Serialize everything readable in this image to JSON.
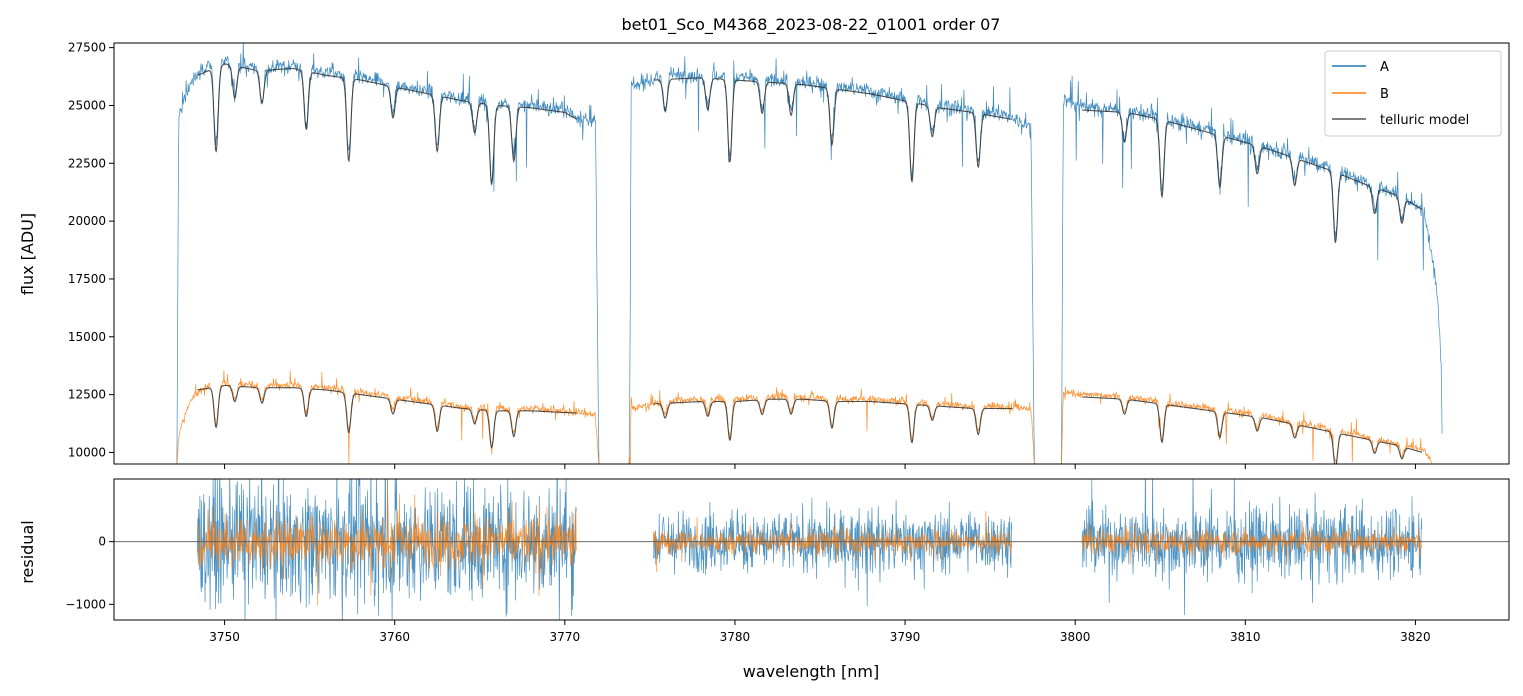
{
  "chart_data": {
    "title": "bet01_Sco_M4368_2023-08-22_01001  order 07",
    "xlabel": "wavelength [nm]",
    "xlim": [
      3743.5,
      3825.5
    ],
    "xticks": [
      3750,
      3760,
      3770,
      3780,
      3790,
      3800,
      3810,
      3820
    ],
    "top_panel": {
      "type": "line",
      "ylabel": "flux [ADU]",
      "ylim": [
        9500,
        27700
      ],
      "yticks": [
        10000,
        12500,
        15000,
        17500,
        20000,
        22500,
        25000,
        27500
      ],
      "legend": {
        "position": "top-right",
        "entries": [
          {
            "label": "A",
            "color": "#1f77b4"
          },
          {
            "label": "B",
            "color": "#ff7f0e"
          },
          {
            "label": "telluric model",
            "color": "#555555"
          }
        ]
      },
      "segments_x": [
        [
          3747.2,
          3772.0
        ],
        [
          3773.8,
          3797.6
        ],
        [
          3799.2,
          3821.6
        ]
      ],
      "series": [
        {
          "name": "A",
          "color": "#1f77b4",
          "points": [
            {
              "x": 3747.2,
              "y": 9500
            },
            {
              "x": 3747.3,
              "y": 24500
            },
            {
              "x": 3748.0,
              "y": 26000
            },
            {
              "x": 3749.0,
              "y": 26800
            },
            {
              "x": 3750.0,
              "y": 26900
            },
            {
              "x": 3752.0,
              "y": 26600
            },
            {
              "x": 3754.0,
              "y": 26700
            },
            {
              "x": 3756.0,
              "y": 26400
            },
            {
              "x": 3758.0,
              "y": 26200
            },
            {
              "x": 3760.0,
              "y": 25900
            },
            {
              "x": 3762.0,
              "y": 25600
            },
            {
              "x": 3764.0,
              "y": 25300
            },
            {
              "x": 3766.0,
              "y": 25100
            },
            {
              "x": 3768.0,
              "y": 25000
            },
            {
              "x": 3770.0,
              "y": 24800
            },
            {
              "x": 3771.0,
              "y": 24400
            },
            {
              "x": 3771.8,
              "y": 24300
            },
            {
              "x": 3772.0,
              "y": 9500
            },
            {
              "x": 3773.8,
              "y": 9500
            },
            {
              "x": 3773.9,
              "y": 25800
            },
            {
              "x": 3776.0,
              "y": 26300
            },
            {
              "x": 3778.0,
              "y": 26300
            },
            {
              "x": 3780.0,
              "y": 26200
            },
            {
              "x": 3782.0,
              "y": 26100
            },
            {
              "x": 3784.0,
              "y": 26000
            },
            {
              "x": 3786.0,
              "y": 25800
            },
            {
              "x": 3788.0,
              "y": 25600
            },
            {
              "x": 3790.0,
              "y": 25300
            },
            {
              "x": 3792.0,
              "y": 25000
            },
            {
              "x": 3794.0,
              "y": 24800
            },
            {
              "x": 3796.0,
              "y": 24600
            },
            {
              "x": 3797.4,
              "y": 24000
            },
            {
              "x": 3797.6,
              "y": 9500
            },
            {
              "x": 3799.2,
              "y": 9500
            },
            {
              "x": 3799.3,
              "y": 25200
            },
            {
              "x": 3801.0,
              "y": 24900
            },
            {
              "x": 3803.0,
              "y": 24800
            },
            {
              "x": 3805.0,
              "y": 24500
            },
            {
              "x": 3807.0,
              "y": 24100
            },
            {
              "x": 3809.0,
              "y": 23700
            },
            {
              "x": 3811.0,
              "y": 23300
            },
            {
              "x": 3813.0,
              "y": 22800
            },
            {
              "x": 3815.0,
              "y": 22300
            },
            {
              "x": 3817.0,
              "y": 21700
            },
            {
              "x": 3819.0,
              "y": 21200
            },
            {
              "x": 3820.5,
              "y": 20400
            },
            {
              "x": 3821.2,
              "y": 17500
            },
            {
              "x": 3821.5,
              "y": 14500
            },
            {
              "x": 3821.6,
              "y": 9500
            }
          ]
        },
        {
          "name": "B",
          "color": "#ff7f0e",
          "points": [
            {
              "x": 3747.2,
              "y": 9500
            },
            {
              "x": 3747.3,
              "y": 10700
            },
            {
              "x": 3748.0,
              "y": 12300
            },
            {
              "x": 3749.0,
              "y": 12900
            },
            {
              "x": 3750.0,
              "y": 13000
            },
            {
              "x": 3752.0,
              "y": 12900
            },
            {
              "x": 3754.0,
              "y": 12900
            },
            {
              "x": 3756.0,
              "y": 12800
            },
            {
              "x": 3758.0,
              "y": 12600
            },
            {
              "x": 3760.0,
              "y": 12400
            },
            {
              "x": 3762.0,
              "y": 12200
            },
            {
              "x": 3764.0,
              "y": 12000
            },
            {
              "x": 3766.0,
              "y": 11900
            },
            {
              "x": 3768.0,
              "y": 11900
            },
            {
              "x": 3770.0,
              "y": 11800
            },
            {
              "x": 3771.0,
              "y": 11700
            },
            {
              "x": 3771.8,
              "y": 11600
            },
            {
              "x": 3772.0,
              "y": 9500
            },
            {
              "x": 3773.8,
              "y": 9500
            },
            {
              "x": 3773.9,
              "y": 11900
            },
            {
              "x": 3776.0,
              "y": 12200
            },
            {
              "x": 3778.0,
              "y": 12300
            },
            {
              "x": 3780.0,
              "y": 12300
            },
            {
              "x": 3782.0,
              "y": 12400
            },
            {
              "x": 3784.0,
              "y": 12400
            },
            {
              "x": 3786.0,
              "y": 12300
            },
            {
              "x": 3788.0,
              "y": 12300
            },
            {
              "x": 3790.0,
              "y": 12200
            },
            {
              "x": 3792.0,
              "y": 12100
            },
            {
              "x": 3794.0,
              "y": 12000
            },
            {
              "x": 3796.0,
              "y": 12000
            },
            {
              "x": 3797.4,
              "y": 11900
            },
            {
              "x": 3797.6,
              "y": 9500
            },
            {
              "x": 3799.2,
              "y": 9500
            },
            {
              "x": 3799.3,
              "y": 12600
            },
            {
              "x": 3801.0,
              "y": 12500
            },
            {
              "x": 3803.0,
              "y": 12400
            },
            {
              "x": 3805.0,
              "y": 12200
            },
            {
              "x": 3807.0,
              "y": 12000
            },
            {
              "x": 3809.0,
              "y": 11800
            },
            {
              "x": 3811.0,
              "y": 11600
            },
            {
              "x": 3813.0,
              "y": 11300
            },
            {
              "x": 3815.0,
              "y": 11000
            },
            {
              "x": 3817.0,
              "y": 10700
            },
            {
              "x": 3819.0,
              "y": 10400
            },
            {
              "x": 3820.5,
              "y": 10100
            },
            {
              "x": 3821.0,
              "y": 9500
            }
          ]
        },
        {
          "name": "telluric model",
          "color": "#333333",
          "segments": [
            [
              [
                3748.4,
                26300
              ],
              [
                3750,
                26800
              ],
              [
                3752,
                26500
              ],
              [
                3754,
                26600
              ],
              [
                3756,
                26300
              ],
              [
                3758,
                26100
              ],
              [
                3760,
                25800
              ],
              [
                3762,
                25500
              ],
              [
                3764,
                25200
              ],
              [
                3766,
                25000
              ],
              [
                3768,
                24900
              ],
              [
                3770,
                24700
              ],
              [
                3770.7,
                24400
              ]
            ],
            [
              [
                3775.2,
                26100
              ],
              [
                3778,
                26200
              ],
              [
                3780,
                26100
              ],
              [
                3782,
                26000
              ],
              [
                3784,
                25900
              ],
              [
                3786,
                25700
              ],
              [
                3788,
                25500
              ],
              [
                3790,
                25200
              ],
              [
                3792,
                24900
              ],
              [
                3794,
                24700
              ],
              [
                3796.3,
                24400
              ]
            ],
            [
              [
                3800.4,
                24800
              ],
              [
                3803,
                24700
              ],
              [
                3805,
                24400
              ],
              [
                3807,
                24000
              ],
              [
                3809,
                23600
              ],
              [
                3811,
                23200
              ],
              [
                3813,
                22700
              ],
              [
                3815,
                22200
              ],
              [
                3817,
                21600
              ],
              [
                3819,
                21100
              ],
              [
                3820.4,
                20500
              ]
            ],
            [
              [
                3748.4,
                12700
              ],
              [
                3750,
                12900
              ],
              [
                3752,
                12800
              ],
              [
                3754,
                12800
              ],
              [
                3756,
                12700
              ],
              [
                3758,
                12500
              ],
              [
                3760,
                12300
              ],
              [
                3762,
                12100
              ],
              [
                3764,
                11900
              ],
              [
                3766,
                11800
              ],
              [
                3768,
                11800
              ],
              [
                3770.7,
                11700
              ]
            ],
            [
              [
                3775.2,
                12100
              ],
              [
                3778,
                12200
              ],
              [
                3780,
                12200
              ],
              [
                3782,
                12300
              ],
              [
                3784,
                12300
              ],
              [
                3786,
                12200
              ],
              [
                3788,
                12200
              ],
              [
                3790,
                12100
              ],
              [
                3792,
                12000
              ],
              [
                3794,
                11900
              ],
              [
                3796.3,
                11900
              ]
            ],
            [
              [
                3800.4,
                12400
              ],
              [
                3803,
                12300
              ],
              [
                3805,
                12100
              ],
              [
                3807,
                11900
              ],
              [
                3809,
                11700
              ],
              [
                3811,
                11500
              ],
              [
                3813,
                11200
              ],
              [
                3815,
                10900
              ],
              [
                3817,
                10600
              ],
              [
                3819,
                10300
              ],
              [
                3820.4,
                10000
              ]
            ]
          ]
        }
      ],
      "absorption_lines_x": [
        3749.5,
        3750.6,
        3752.2,
        3754.8,
        3757.3,
        3759.9,
        3762.5,
        3764.7,
        3765.7,
        3767.0,
        3775.9,
        3778.4,
        3779.7,
        3781.6,
        3783.3,
        3785.7,
        3790.4,
        3791.6,
        3794.3,
        3802.9,
        3805.1,
        3808.5,
        3810.7,
        3812.9,
        3815.3,
        3817.6,
        3819.2
      ]
    },
    "bottom_panel": {
      "type": "line",
      "ylabel": "residual",
      "ylim": [
        -1250,
        1000
      ],
      "yticks": [
        -1000,
        0
      ],
      "zero_line": 0,
      "segments_x": [
        [
          3748.4,
          3770.7
        ],
        [
          3775.2,
          3796.3
        ],
        [
          3800.4,
          3820.4
        ]
      ],
      "series": [
        {
          "name": "A",
          "color": "#1f77b4",
          "amplitude_per_segment": [
            1200,
            600,
            700
          ]
        },
        {
          "name": "B",
          "color": "#ff7f0e",
          "amplitude_per_segment": [
            500,
            230,
            250
          ]
        }
      ]
    }
  }
}
